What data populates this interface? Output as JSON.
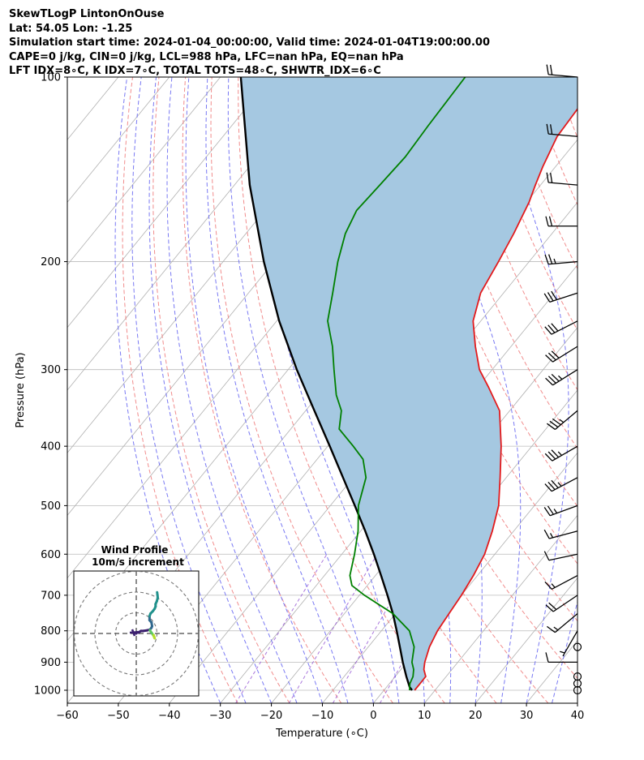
{
  "header": {
    "line1": "SkewTLogP LintonOnOuse",
    "line2": "Lat: 54.05   Lon: -1.25",
    "line3": "Simulation start time: 2024-01-04_00:00:00, Valid time: 2024-01-04T19:00:00.00",
    "line4": "CAPE=0 j/kg, CIN=0 j/kg, LCL=988 hPa, LFC=nan hPa, EQ=nan hPa",
    "line5": "LFT IDX=8∘C, K IDX=7∘C, TOTAL TOTS=48∘C, SHWTR_IDX=6∘C"
  },
  "chart_data": {
    "type": "line",
    "subtype": "skew-T log-P",
    "xlabel": "Temperature (∘C)",
    "ylabel": "Pressure (hPa)",
    "xlim": [
      -60,
      40
    ],
    "ylim": [
      1050,
      100
    ],
    "y_scale": "log",
    "grid": true,
    "x_ticks": [
      -60,
      -50,
      -40,
      -30,
      -20,
      -10,
      0,
      10,
      20,
      30,
      40
    ],
    "x_tick_labels": [
      "−60",
      "−50",
      "−40",
      "−30",
      "−20",
      "−10",
      "0",
      "10",
      "20",
      "30",
      "40"
    ],
    "y_ticks": [
      1000,
      900,
      800,
      700,
      600,
      500,
      400,
      300,
      200,
      100
    ],
    "y_tick_labels": [
      "1000",
      "900",
      "800",
      "700",
      "600",
      "500",
      "400",
      "300",
      "200",
      "100"
    ],
    "colors": {
      "temperature": "#e31a1c",
      "dewpoint": "#008000",
      "parcel": "#000000",
      "fill": "#a5c8e1",
      "dry_adiabat": "#f08080",
      "moist_adiabat": "#6a6af2",
      "mixing_ratio": "#9b5fd6",
      "isotherm": "#b0b0b0",
      "grid": "#bbbbbb"
    },
    "temperature_profile": [
      {
        "p": 1000,
        "t": 6.0
      },
      {
        "p": 975,
        "t": 6.0
      },
      {
        "p": 950,
        "t": 6.0
      },
      {
        "p": 925,
        "t": 4.5
      },
      {
        "p": 900,
        "t": 3.5
      },
      {
        "p": 850,
        "t": 2.0
      },
      {
        "p": 800,
        "t": 1.0
      },
      {
        "p": 750,
        "t": 0.5
      },
      {
        "p": 700,
        "t": 0.0
      },
      {
        "p": 650,
        "t": -0.8
      },
      {
        "p": 600,
        "t": -2.0
      },
      {
        "p": 550,
        "t": -4.2
      },
      {
        "p": 500,
        "t": -7.0
      },
      {
        "p": 450,
        "t": -11.2
      },
      {
        "p": 400,
        "t": -16.0
      },
      {
        "p": 350,
        "t": -22.0
      },
      {
        "p": 320,
        "t": -28.0
      },
      {
        "p": 300,
        "t": -32.5
      },
      {
        "p": 275,
        "t": -37.0
      },
      {
        "p": 250,
        "t": -41.5
      },
      {
        "p": 225,
        "t": -44.5
      },
      {
        "p": 200,
        "t": -46.0
      },
      {
        "p": 180,
        "t": -47.5
      },
      {
        "p": 160,
        "t": -49.5
      },
      {
        "p": 150,
        "t": -51.0
      },
      {
        "p": 140,
        "t": -52.5
      },
      {
        "p": 125,
        "t": -54.5
      },
      {
        "p": 110,
        "t": -55.0
      },
      {
        "p": 100,
        "t": -54.5
      }
    ],
    "dewpoint_profile": [
      {
        "p": 1000,
        "t": 5.0
      },
      {
        "p": 975,
        "t": 4.0
      },
      {
        "p": 950,
        "t": 3.5
      },
      {
        "p": 925,
        "t": 2.5
      },
      {
        "p": 900,
        "t": 1.0
      },
      {
        "p": 850,
        "t": -1.0
      },
      {
        "p": 800,
        "t": -4.5
      },
      {
        "p": 750,
        "t": -10.5
      },
      {
        "p": 700,
        "t": -19.0
      },
      {
        "p": 675,
        "t": -23.0
      },
      {
        "p": 650,
        "t": -25.0
      },
      {
        "p": 600,
        "t": -27.5
      },
      {
        "p": 550,
        "t": -30.5
      },
      {
        "p": 500,
        "t": -34.5
      },
      {
        "p": 450,
        "t": -37.5
      },
      {
        "p": 420,
        "t": -41.0
      },
      {
        "p": 400,
        "t": -45.0
      },
      {
        "p": 375,
        "t": -50.5
      },
      {
        "p": 350,
        "t": -53.0
      },
      {
        "p": 330,
        "t": -56.5
      },
      {
        "p": 300,
        "t": -61.0
      },
      {
        "p": 275,
        "t": -65.0
      },
      {
        "p": 250,
        "t": -70.0
      },
      {
        "p": 225,
        "t": -73.5
      },
      {
        "p": 200,
        "t": -77.5
      },
      {
        "p": 180,
        "t": -80.5
      },
      {
        "p": 165,
        "t": -82.0
      },
      {
        "p": 150,
        "t": -81.5
      },
      {
        "p": 135,
        "t": -81.0
      },
      {
        "p": 120,
        "t": -81.5
      },
      {
        "p": 100,
        "t": -82.0
      }
    ],
    "parcel_profile": [
      {
        "p": 1000,
        "t": 5.5
      },
      {
        "p": 988,
        "t": 4.5
      },
      {
        "p": 950,
        "t": 2.2
      },
      {
        "p": 900,
        "t": -0.8
      },
      {
        "p": 850,
        "t": -3.8
      },
      {
        "p": 800,
        "t": -7.0
      },
      {
        "p": 750,
        "t": -10.5
      },
      {
        "p": 700,
        "t": -14.5
      },
      {
        "p": 650,
        "t": -18.9
      },
      {
        "p": 600,
        "t": -23.7
      },
      {
        "p": 550,
        "t": -29.1
      },
      {
        "p": 500,
        "t": -35.2
      },
      {
        "p": 450,
        "t": -42.0
      },
      {
        "p": 400,
        "t": -49.6
      },
      {
        "p": 350,
        "t": -58.3
      },
      {
        "p": 300,
        "t": -68.3
      },
      {
        "p": 250,
        "t": -79.5
      },
      {
        "p": 200,
        "t": -92.0
      },
      {
        "p": 150,
        "t": -107.0
      },
      {
        "p": 100,
        "t": -126.0
      }
    ],
    "wind_barbs": [
      {
        "p": 100,
        "speed_kt": 20,
        "dir_deg": 275
      },
      {
        "p": 125,
        "speed_kt": 20,
        "dir_deg": 275
      },
      {
        "p": 150,
        "speed_kt": 20,
        "dir_deg": 275
      },
      {
        "p": 175,
        "speed_kt": 20,
        "dir_deg": 270
      },
      {
        "p": 200,
        "speed_kt": 25,
        "dir_deg": 265
      },
      {
        "p": 225,
        "speed_kt": 30,
        "dir_deg": 252
      },
      {
        "p": 250,
        "speed_kt": 30,
        "dir_deg": 243
      },
      {
        "p": 275,
        "speed_kt": 30,
        "dir_deg": 238
      },
      {
        "p": 300,
        "speed_kt": 35,
        "dir_deg": 238
      },
      {
        "p": 350,
        "speed_kt": 35,
        "dir_deg": 230
      },
      {
        "p": 400,
        "speed_kt": 35,
        "dir_deg": 240
      },
      {
        "p": 450,
        "speed_kt": 35,
        "dir_deg": 242
      },
      {
        "p": 500,
        "speed_kt": 25,
        "dir_deg": 250
      },
      {
        "p": 550,
        "speed_kt": 15,
        "dir_deg": 255
      },
      {
        "p": 600,
        "speed_kt": 10,
        "dir_deg": 258
      },
      {
        "p": 650,
        "speed_kt": 15,
        "dir_deg": 242
      },
      {
        "p": 700,
        "speed_kt": 20,
        "dir_deg": 236
      },
      {
        "p": 750,
        "speed_kt": 15,
        "dir_deg": 230
      },
      {
        "p": 800,
        "speed_kt": 5,
        "dir_deg": 210
      },
      {
        "p": 850,
        "speed_kt": 0,
        "dir_deg": 0
      },
      {
        "p": 900,
        "speed_kt": 10,
        "dir_deg": 270
      },
      {
        "p": 950,
        "speed_kt": 0,
        "dir_deg": 0
      },
      {
        "p": 975,
        "speed_kt": 0,
        "dir_deg": 0
      },
      {
        "p": 1000,
        "speed_kt": 0,
        "dir_deg": 0
      }
    ],
    "hodograph": {
      "title": "Wind Profile",
      "subtitle": "10m/s increment",
      "ring_increment_ms": 10,
      "rings": 3,
      "points": [
        {
          "u": 0.0,
          "v": 0.0
        },
        {
          "u": 0.3,
          "v": 0.4
        },
        {
          "u": 0.7,
          "v": 0.3
        },
        {
          "u": 1.5,
          "v": 0.8
        },
        {
          "u": 2.2,
          "v": 0.8
        },
        {
          "u": 3.5,
          "v": 1.0
        },
        {
          "u": 4.3,
          "v": 1.2
        },
        {
          "u": 4.8,
          "v": 1.8
        },
        {
          "u": 5.0,
          "v": 2.3
        },
        {
          "u": 4.8,
          "v": 3.5
        },
        {
          "u": 4.2,
          "v": 4.2
        },
        {
          "u": 4.2,
          "v": 5.5
        },
        {
          "u": 4.5,
          "v": 6.3
        },
        {
          "u": 5.2,
          "v": 7.0
        },
        {
          "u": 5.8,
          "v": 7.8
        },
        {
          "u": 6.1,
          "v": 8.5
        },
        {
          "u": 6.1,
          "v": 9.3
        },
        {
          "u": 6.5,
          "v": 10.2
        },
        {
          "u": 6.8,
          "v": 11.3
        },
        {
          "u": 6.7,
          "v": 12.2
        },
        {
          "u": 6.6,
          "v": 13.0
        }
      ],
      "surface_tail": [
        {
          "u": 4.3,
          "v": 1.0
        },
        {
          "u": 5.0,
          "v": 0.0
        },
        {
          "u": 5.5,
          "v": -0.8
        },
        {
          "u": 5.8,
          "v": -1.5
        },
        {
          "u": 5.5,
          "v": -0.5
        }
      ]
    }
  }
}
